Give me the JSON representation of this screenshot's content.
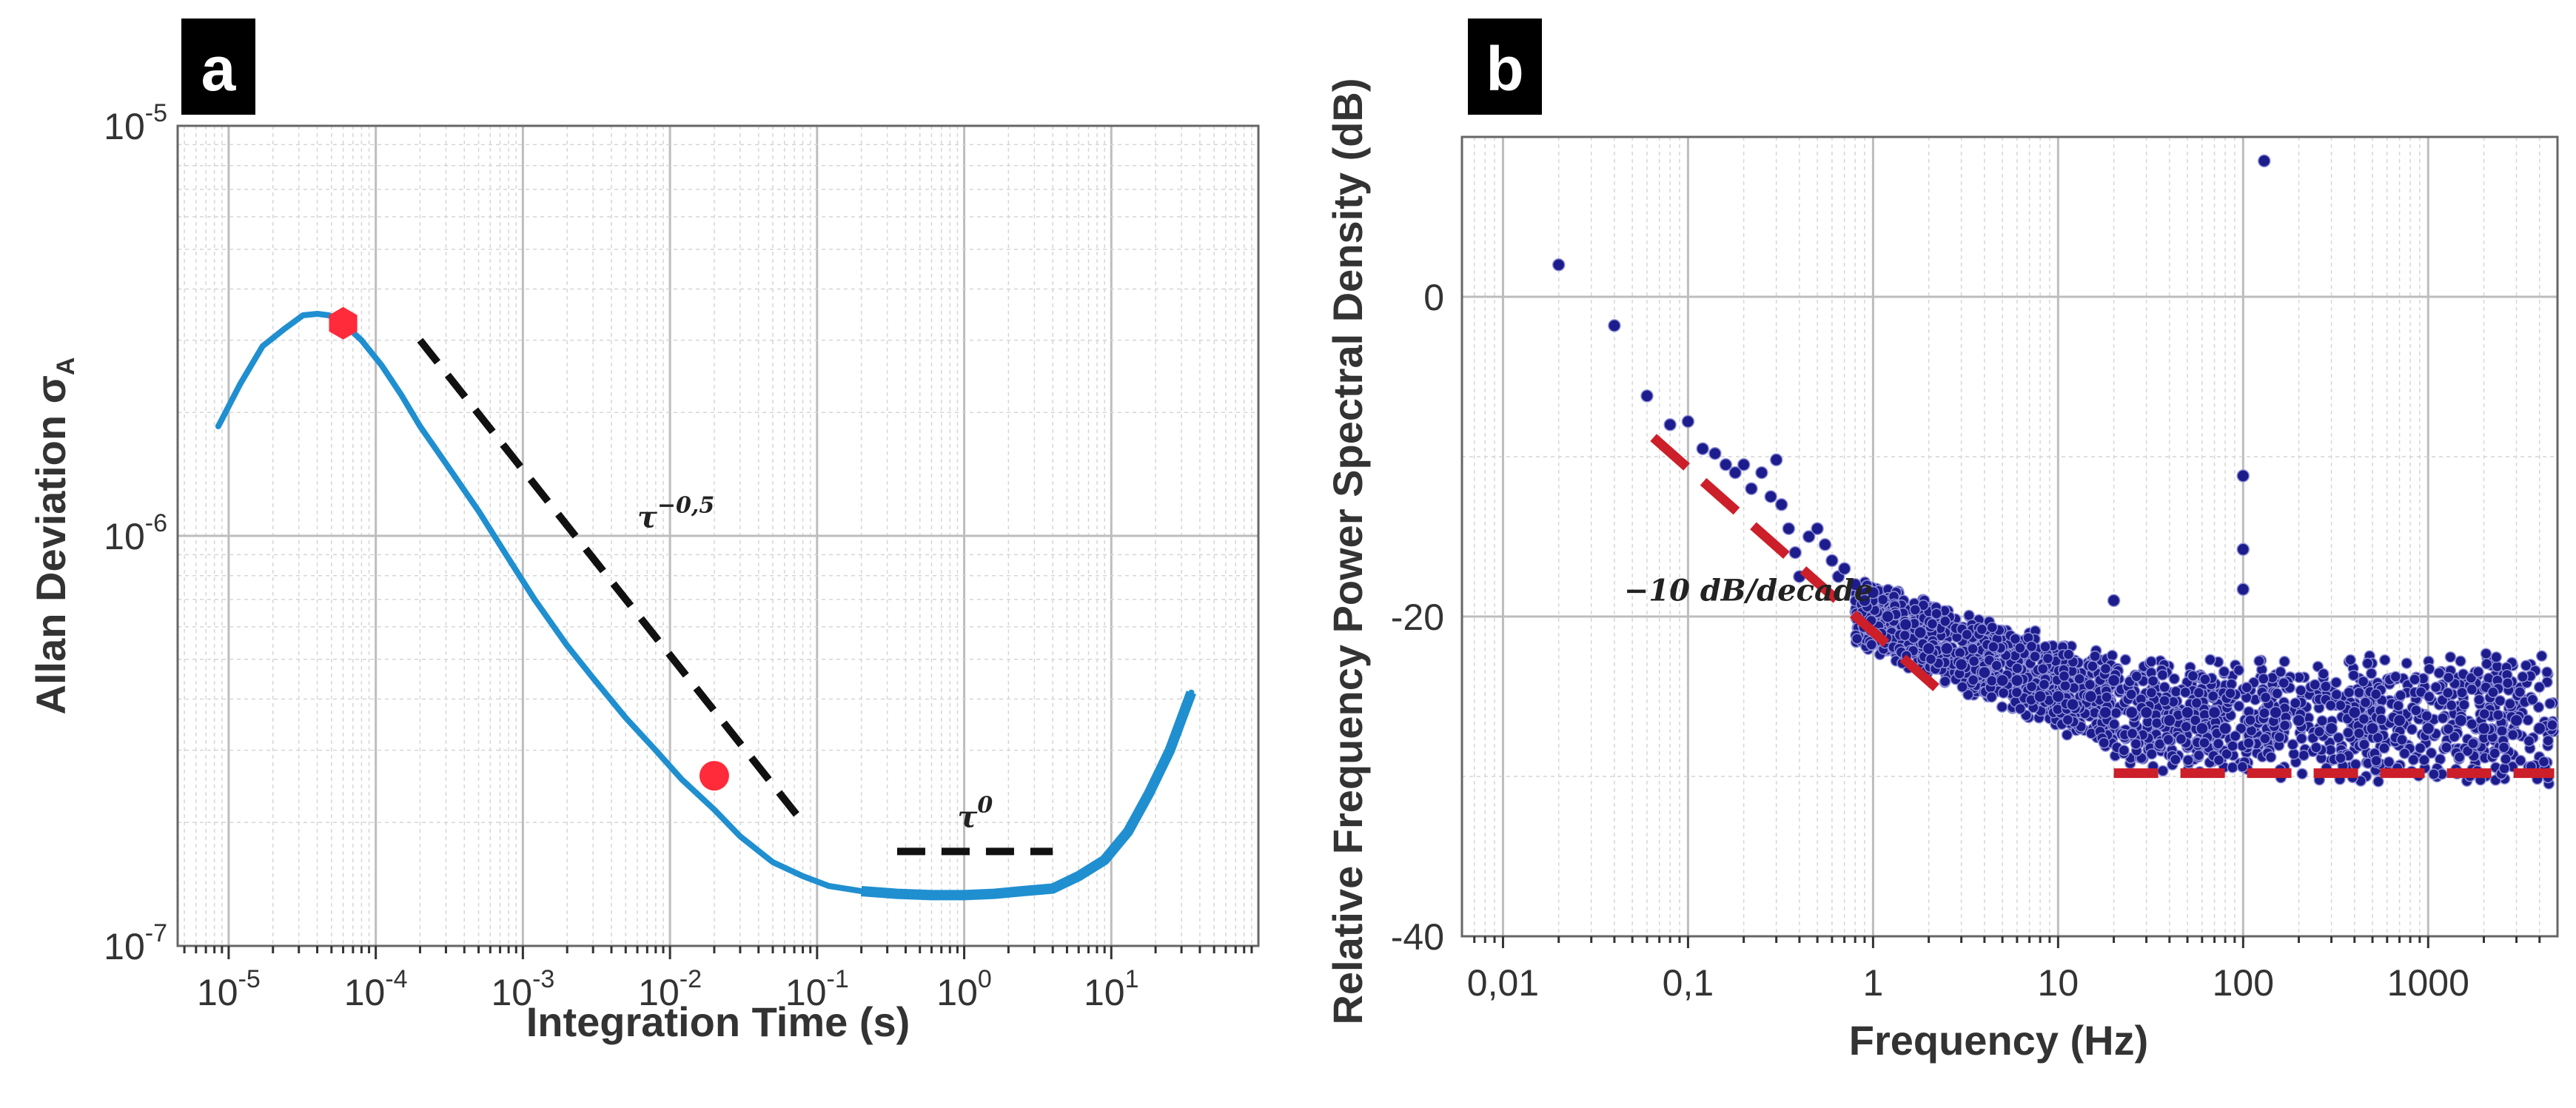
{
  "chart_data": [
    {
      "panel": "a",
      "type": "line",
      "xscale": "log",
      "yscale": "log",
      "xlabel": "Integration Time (s)",
      "ylabel": "Allan Deviation σ",
      "ylabel_subscript": "A",
      "xlim": [
        4.5e-06,
        100
      ],
      "ylim": [
        1e-07,
        1e-05
      ],
      "x_ticks": [
        {
          "value": 1e-05,
          "base": "10",
          "exp": "-5"
        },
        {
          "value": 0.0001,
          "base": "10",
          "exp": "-4"
        },
        {
          "value": 0.001,
          "base": "10",
          "exp": "-3"
        },
        {
          "value": 0.01,
          "base": "10",
          "exp": "-2"
        },
        {
          "value": 0.1,
          "base": "10",
          "exp": "-1"
        },
        {
          "value": 1,
          "base": "10",
          "exp": "0"
        },
        {
          "value": 10,
          "base": "10",
          "exp": "1"
        }
      ],
      "y_ticks": [
        {
          "value": 1e-05,
          "base": "10",
          "exp": "-5"
        },
        {
          "value": 1e-06,
          "base": "10",
          "exp": "-6"
        },
        {
          "value": 1e-07,
          "base": "10",
          "exp": "-7"
        }
      ],
      "series": [
        {
          "name": "Allan deviation",
          "color": "#1f8fd0",
          "x": [
            8.5e-06,
            1.2e-05,
            1.7e-05,
            2.4e-05,
            3.2e-05,
            4e-05,
            4.8e-05,
            6e-05,
            8e-05,
            0.00011,
            0.00015,
            0.0002,
            0.0003,
            0.0005,
            0.0008,
            0.0012,
            0.002,
            0.003,
            0.005,
            0.008,
            0.012,
            0.02,
            0.03,
            0.05,
            0.08,
            0.12,
            0.2,
            0.35,
            0.6,
            1,
            1.6,
            2.5,
            4,
            6,
            9,
            13,
            18,
            25,
            35
          ],
          "y": [
            1.85e-06,
            2.35e-06,
            2.9e-06,
            3.2e-06,
            3.45e-06,
            3.48e-06,
            3.45e-06,
            3.3e-06,
            3e-06,
            2.6e-06,
            2.2e-06,
            1.85e-06,
            1.5e-06,
            1.15e-06,
            8.8e-07,
            7e-07,
            5.4e-07,
            4.5e-07,
            3.6e-07,
            3e-07,
            2.55e-07,
            2.15e-07,
            1.85e-07,
            1.6e-07,
            1.48e-07,
            1.4e-07,
            1.36e-07,
            1.34e-07,
            1.33e-07,
            1.33e-07,
            1.34e-07,
            1.36e-07,
            1.38e-07,
            1.48e-07,
            1.62e-07,
            1.9e-07,
            2.35e-07,
            3e-07,
            4.15e-07
          ]
        }
      ],
      "markers": [
        {
          "shape": "hexagon",
          "color": "#ff2a3a",
          "x": 6e-05,
          "y": 3.3e-06
        },
        {
          "shape": "circle",
          "color": "#ff2a3a",
          "x": 0.02,
          "y": 2.6e-07
        }
      ],
      "guide_lines": [
        {
          "label": "τ",
          "sup": "−0,5",
          "x": [
            0.0002,
            0.08
          ],
          "y": [
            3e-06,
            2e-07
          ],
          "label_x": 0.006,
          "label_y": 1.05e-06
        },
        {
          "label": "τ",
          "sup": "0",
          "x": [
            0.35,
            4
          ],
          "y": [
            1.7e-07,
            1.7e-07
          ],
          "label_x": 0.9,
          "label_y": 1.95e-07
        }
      ]
    },
    {
      "panel": "b",
      "type": "scatter",
      "xscale": "log",
      "yscale": "linear",
      "xlabel": "Frequency (Hz)",
      "ylabel": "Relative Frequency Power Spectral Density (dB)",
      "xlim": [
        0.006,
        5000
      ],
      "ylim": [
        -40,
        10
      ],
      "x_ticks": [
        {
          "value": 0.01,
          "label": "0,01"
        },
        {
          "value": 0.1,
          "label": "0,1"
        },
        {
          "value": 1,
          "label": "1"
        },
        {
          "value": 10,
          "label": "10"
        },
        {
          "value": 100,
          "label": "100"
        },
        {
          "value": 1000,
          "label": "1000"
        }
      ],
      "y_ticks": [
        {
          "value": 0,
          "label": "0"
        },
        {
          "value": -20,
          "label": "-20"
        },
        {
          "value": -40,
          "label": "-40"
        }
      ],
      "marker_color": "#1c1c8c",
      "points": [
        [
          0.02,
          2
        ],
        [
          0.04,
          -1.8
        ],
        [
          0.06,
          -6.2
        ],
        [
          0.08,
          -8
        ],
        [
          0.1,
          -7.8
        ],
        [
          0.12,
          -9.5
        ],
        [
          0.14,
          -9.8
        ],
        [
          0.16,
          -10.5
        ],
        [
          0.18,
          -11
        ],
        [
          0.2,
          -10.5
        ],
        [
          0.22,
          -12
        ],
        [
          0.25,
          -11
        ],
        [
          0.28,
          -12.5
        ],
        [
          0.3,
          -10.2
        ],
        [
          0.32,
          -13
        ],
        [
          0.35,
          -14.5
        ],
        [
          0.38,
          -16
        ],
        [
          0.4,
          -17.5
        ],
        [
          0.45,
          -15
        ],
        [
          0.5,
          -14.5
        ],
        [
          0.55,
          -15.5
        ],
        [
          0.6,
          -16.5
        ],
        [
          0.65,
          -17.5
        ],
        [
          0.7,
          -17
        ],
        [
          0.8,
          -18
        ],
        [
          0.9,
          -19
        ],
        [
          1.0,
          -18.5
        ],
        [
          1.2,
          -20
        ],
        [
          1.5,
          -20.5
        ],
        [
          1.8,
          -21
        ],
        [
          2,
          -22
        ],
        [
          2.5,
          -22
        ],
        [
          3,
          -23
        ],
        [
          4,
          -23.5
        ],
        [
          5,
          -24
        ],
        [
          6,
          -24
        ],
        [
          8,
          -25
        ],
        [
          10,
          -25
        ],
        [
          12,
          -25.5
        ],
        [
          15,
          -25
        ],
        [
          18,
          -26
        ],
        [
          20,
          -19
        ],
        [
          20,
          -24
        ],
        [
          25,
          -26
        ],
        [
          30,
          -26
        ],
        [
          40,
          -26.5
        ],
        [
          50,
          -26
        ],
        [
          60,
          -27
        ],
        [
          70,
          -26
        ],
        [
          80,
          -27
        ],
        [
          100,
          -11.2
        ],
        [
          100,
          -15.8
        ],
        [
          100,
          -18.3
        ],
        [
          130,
          8.5
        ],
        [
          150,
          -26
        ],
        [
          200,
          -26.5
        ],
        [
          300,
          -27
        ],
        [
          400,
          -26
        ],
        [
          500,
          -27
        ],
        [
          700,
          -26.5
        ],
        [
          1000,
          -27
        ],
        [
          1500,
          -26.5
        ],
        [
          2000,
          -27
        ],
        [
          3000,
          -26.5
        ],
        [
          4000,
          -27
        ]
      ],
      "bands": [
        {
          "x_from": 0.8,
          "x_to": 20,
          "y_from_start": -17.5,
          "y_from_end": -22,
          "y_to_start": -22,
          "y_to_end": -29
        },
        {
          "x_from": 20,
          "x_to": 4800,
          "y_from_start": -22.5,
          "y_from_end": -22,
          "y_to_start": -30,
          "y_to_end": -31
        }
      ],
      "guide_lines": [
        {
          "label": "−10 dB/decade",
          "x": [
            0.065,
            2.6
          ],
          "y": [
            -8.8,
            -25.2
          ],
          "label_x": 0.045,
          "label_y": -19
        },
        {
          "label": "",
          "x": [
            20,
            4800
          ],
          "y": [
            -29.8,
            -29.8
          ]
        }
      ]
    }
  ]
}
